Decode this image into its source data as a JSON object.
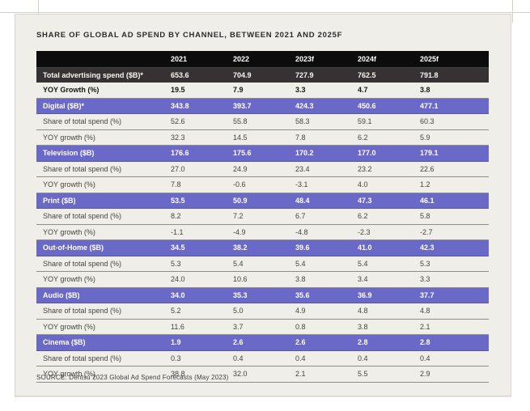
{
  "page": {
    "title": "SHARE OF GLOBAL AD SPEND BY CHANNEL, BETWEEN 2021 AND 2025F",
    "source": "SOURCE: Dentsu 2023 Global Ad Spend Forecasts (May 2023)"
  },
  "colors": {
    "panel_bg": "#f0eee9",
    "header_row_bg": "#0c0c0c",
    "total_row_bg": "#363233",
    "channel_row_bg": "#6b69c8",
    "row_text": "#474441",
    "inverse_text": "#ffffff",
    "separator_line": "#908d89"
  },
  "chart_data": {
    "type": "table",
    "title": "SHARE OF GLOBAL AD SPEND BY CHANNEL, BETWEEN 2021 AND 2025F",
    "columns": [
      "",
      "2021",
      "2022",
      "2023f",
      "2024f",
      "2025f"
    ],
    "rows": [
      {
        "type": "total",
        "label": "Total advertising spend ($B)*",
        "values": [
          "653.6",
          "704.9",
          "727.9",
          "762.5",
          "791.8"
        ]
      },
      {
        "type": "bold",
        "label": "YOY Growth (%)",
        "values": [
          "19.5",
          "7.9",
          "3.3",
          "4.7",
          "3.8"
        ]
      },
      {
        "type": "channel",
        "label": "Digital ($B)*",
        "values": [
          "343.8",
          "393.7",
          "424.3",
          "450.6",
          "477.1"
        ]
      },
      {
        "type": "sub",
        "label": "Share of total spend (%)",
        "values": [
          "52.6",
          "55.8",
          "58.3",
          "59.1",
          "60.3"
        ]
      },
      {
        "type": "sub",
        "label": "YOY growth (%)",
        "values": [
          "32.3",
          "14.5",
          "7.8",
          "6.2",
          "5.9"
        ]
      },
      {
        "type": "channel",
        "label": "Television ($B)",
        "values": [
          "176.6",
          "175.6",
          "170.2",
          "177.0",
          "179.1"
        ]
      },
      {
        "type": "sub",
        "label": "Share of total spend (%)",
        "values": [
          "27.0",
          "24.9",
          "23.4",
          "23.2",
          "22.6"
        ]
      },
      {
        "type": "sub",
        "label": "YOY growth (%)",
        "values": [
          "7.8",
          "-0.6",
          "-3.1",
          "4.0",
          "1.2"
        ]
      },
      {
        "type": "channel",
        "label": "Print ($B)",
        "values": [
          "53.5",
          "50.9",
          "48.4",
          "47.3",
          "46.1"
        ]
      },
      {
        "type": "sub",
        "label": "Share of total spend (%)",
        "values": [
          "8.2",
          "7.2",
          "6.7",
          "6.2",
          "5.8"
        ]
      },
      {
        "type": "sub",
        "label": "YOY growth (%)",
        "values": [
          "-1.1",
          "-4.9",
          "-4.8",
          "-2.3",
          "-2.7"
        ]
      },
      {
        "type": "channel",
        "label": "Out-of-Home ($B)",
        "values": [
          "34.5",
          "38.2",
          "39.6",
          "41.0",
          "42.3"
        ]
      },
      {
        "type": "sub",
        "label": "Share of total spend (%)",
        "values": [
          "5.3",
          "5.4",
          "5.4",
          "5.4",
          "5.3"
        ]
      },
      {
        "type": "sub",
        "label": "YOY growth (%)",
        "values": [
          "24.0",
          "10.6",
          "3.8",
          "3.4",
          "3.3"
        ]
      },
      {
        "type": "channel",
        "label": "Audio ($B)",
        "values": [
          "34.0",
          "35.3",
          "35.6",
          "36.9",
          "37.7"
        ]
      },
      {
        "type": "sub",
        "label": "Share of total spend (%)",
        "values": [
          "5.2",
          "5.0",
          "4.9",
          "4.8",
          "4.8"
        ]
      },
      {
        "type": "sub",
        "label": "YOY growth (%)",
        "values": [
          "11.6",
          "3.7",
          "0.8",
          "3.8",
          "2.1"
        ]
      },
      {
        "type": "channel",
        "label": "Cinema ($B)",
        "values": [
          "1.9",
          "2.6",
          "2.6",
          "2.8",
          "2.8"
        ]
      },
      {
        "type": "sub",
        "label": "Share of total spend (%)",
        "values": [
          "0.3",
          "0.4",
          "0.4",
          "0.4",
          "0.4"
        ]
      },
      {
        "type": "sub",
        "label": "YOY growth (%)",
        "values": [
          "38.8",
          "32.0",
          "2.1",
          "5.5",
          "2.9"
        ]
      }
    ]
  }
}
